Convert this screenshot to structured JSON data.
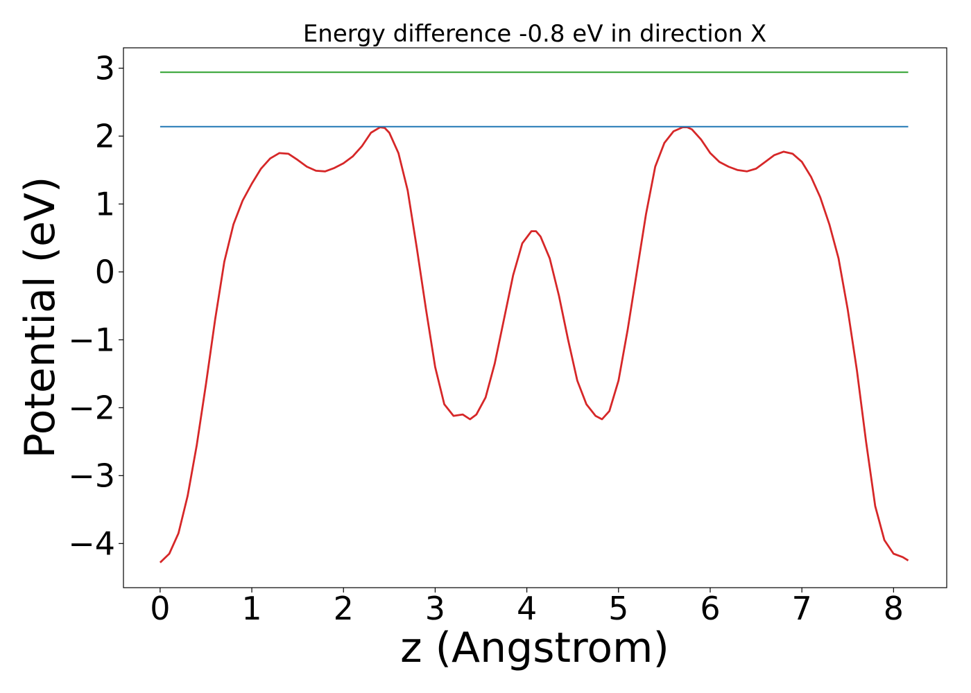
{
  "chart_data": {
    "type": "line",
    "title": "Energy difference -0.8 eV in direction X",
    "xlabel": "z (Angstrom)",
    "ylabel": "Potential (eV)",
    "xlim": [
      -0.4,
      8.58
    ],
    "ylim": [
      -4.65,
      3.3
    ],
    "xticks": [
      0,
      1,
      2,
      3,
      4,
      5,
      6,
      7,
      8
    ],
    "xtick_labels": [
      "0",
      "1",
      "2",
      "3",
      "4",
      "5",
      "6",
      "7",
      "8"
    ],
    "yticks": [
      3,
      2,
      1,
      0,
      -1,
      -2,
      -3,
      -4
    ],
    "ytick_labels": [
      "3",
      "2",
      "1",
      "0",
      "−1",
      "−2",
      "−3",
      "−4"
    ],
    "grid": false,
    "legend": "none",
    "series": [
      {
        "color": "#d62728",
        "x": [
          0.0,
          0.1,
          0.2,
          0.3,
          0.4,
          0.5,
          0.6,
          0.7,
          0.8,
          0.9,
          1.0,
          1.1,
          1.2,
          1.3,
          1.4,
          1.5,
          1.6,
          1.7,
          1.8,
          1.9,
          2.0,
          2.1,
          2.2,
          2.3,
          2.4,
          2.45,
          2.5,
          2.6,
          2.7,
          2.8,
          2.9,
          3.0,
          3.1,
          3.2,
          3.3,
          3.38,
          3.45,
          3.55,
          3.65,
          3.75,
          3.85,
          3.95,
          4.05,
          4.1,
          4.15,
          4.25,
          4.35,
          4.45,
          4.55,
          4.65,
          4.75,
          4.82,
          4.9,
          5.0,
          5.1,
          5.2,
          5.3,
          5.4,
          5.5,
          5.6,
          5.7,
          5.75,
          5.8,
          5.9,
          6.0,
          6.1,
          6.2,
          6.3,
          6.4,
          6.5,
          6.6,
          6.7,
          6.8,
          6.9,
          7.0,
          7.1,
          7.2,
          7.3,
          7.4,
          7.5,
          7.6,
          7.7,
          7.8,
          7.9,
          8.0,
          8.1,
          8.16
        ],
        "y": [
          -4.28,
          -4.15,
          -3.85,
          -3.3,
          -2.55,
          -1.65,
          -0.7,
          0.15,
          0.7,
          1.05,
          1.3,
          1.52,
          1.67,
          1.75,
          1.74,
          1.65,
          1.55,
          1.49,
          1.48,
          1.53,
          1.6,
          1.7,
          1.85,
          2.05,
          2.13,
          2.12,
          2.05,
          1.75,
          1.2,
          0.35,
          -0.55,
          -1.4,
          -1.95,
          -2.12,
          -2.1,
          -2.17,
          -2.1,
          -1.85,
          -1.35,
          -0.7,
          -0.05,
          0.42,
          0.6,
          0.6,
          0.52,
          0.2,
          -0.35,
          -1.0,
          -1.6,
          -1.95,
          -2.12,
          -2.17,
          -2.05,
          -1.6,
          -0.85,
          0.0,
          0.85,
          1.55,
          1.9,
          2.07,
          2.13,
          2.13,
          2.1,
          1.95,
          1.75,
          1.62,
          1.55,
          1.5,
          1.48,
          1.52,
          1.62,
          1.72,
          1.77,
          1.74,
          1.62,
          1.4,
          1.1,
          0.7,
          0.2,
          -0.55,
          -1.45,
          -2.5,
          -3.45,
          -3.95,
          -4.15,
          -4.2,
          -4.25
        ]
      },
      {
        "color": "#1f77b4",
        "x": [
          0.0,
          8.16
        ],
        "y": [
          2.14,
          2.14
        ]
      },
      {
        "color": "#2ca02c",
        "x": [
          0.0,
          8.16
        ],
        "y": [
          2.94,
          2.94
        ]
      }
    ]
  }
}
